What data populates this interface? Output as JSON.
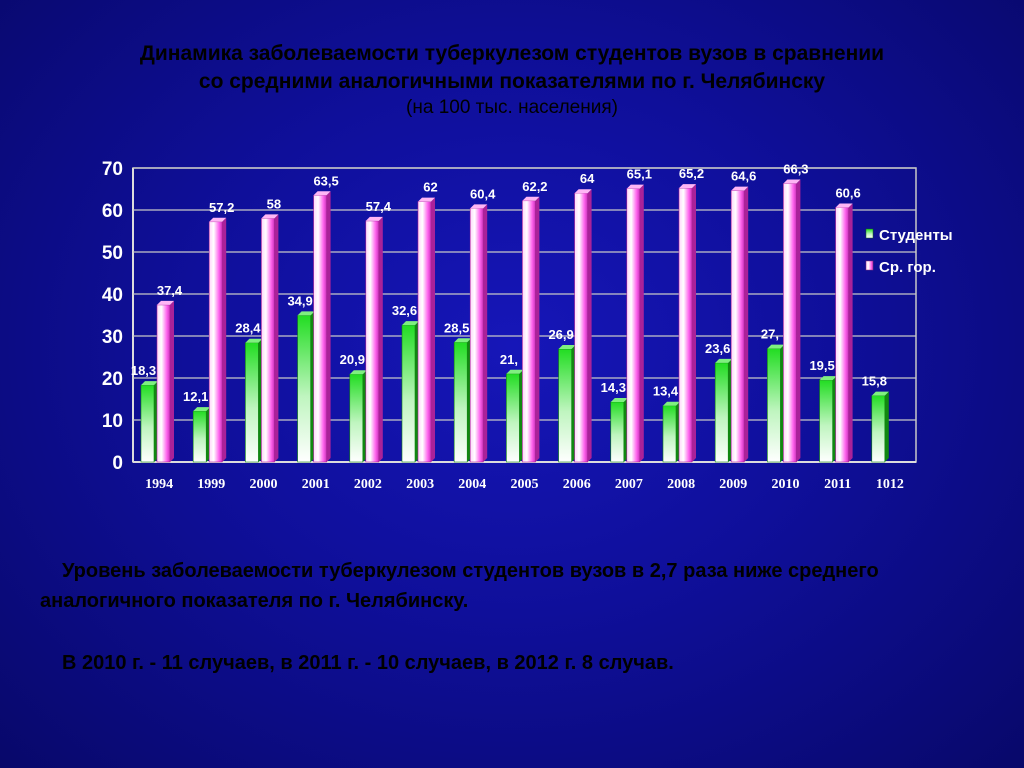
{
  "slide": {
    "title_line1": "Динамика заболеваемости туберкулезом студентов вузов в сравнении",
    "title_line2": "со средними аналогичными показателями по г. Челябинску",
    "title_line3": "(на 100 тыс. населения)",
    "paragraph1": "Уровень заболеваемости туберкулезом студентов вузов в 2,7 раза ниже среднего аналогичного показателя по г. Челябинску.",
    "paragraph2": "В 2010 г. - 11 случаев, в 2011 г.  - 10 случаев, в 2012 г. 8 случав."
  },
  "chart_data": {
    "type": "bar",
    "categories": [
      "1994",
      "1999",
      "2000",
      "2001",
      "2002",
      "2003",
      "2004",
      "2005",
      "2006",
      "2007",
      "2008",
      "2009",
      "2010",
      "2011",
      "1012"
    ],
    "series": [
      {
        "name": "Студенты",
        "values": [
          18.3,
          12.1,
          28.4,
          34.9,
          20.9,
          32.6,
          28.5,
          21,
          26.9,
          14.3,
          13.4,
          23.6,
          27,
          19.5,
          15.8
        ],
        "labels": [
          "18,3",
          "12,1",
          "28,4",
          "34,9",
          "20,9",
          "32,6",
          "28,5",
          "21,",
          "26,9",
          "14,3",
          "13,4",
          "23,6",
          "27,",
          "19,5",
          "15,8"
        ],
        "color": "#22dd22"
      },
      {
        "name": "Ср. гор.",
        "values": [
          37.4,
          57.2,
          58,
          63.5,
          57.4,
          62,
          60.4,
          62.2,
          64,
          65.1,
          65.2,
          64.6,
          66.3,
          60.6,
          null
        ],
        "labels": [
          "37,4",
          "57,2",
          "58",
          "63,5",
          "57,4",
          "62",
          "60,4",
          "62,2",
          "64",
          "65,1",
          "65,2",
          "64,6",
          "66,3",
          "60,6",
          ""
        ],
        "color": "#ff66ee"
      }
    ],
    "yticks": [
      "0",
      "10",
      "20",
      "30",
      "40",
      "50",
      "60",
      "70"
    ],
    "ylim": [
      0,
      70
    ],
    "grid": true,
    "legend": "right"
  }
}
